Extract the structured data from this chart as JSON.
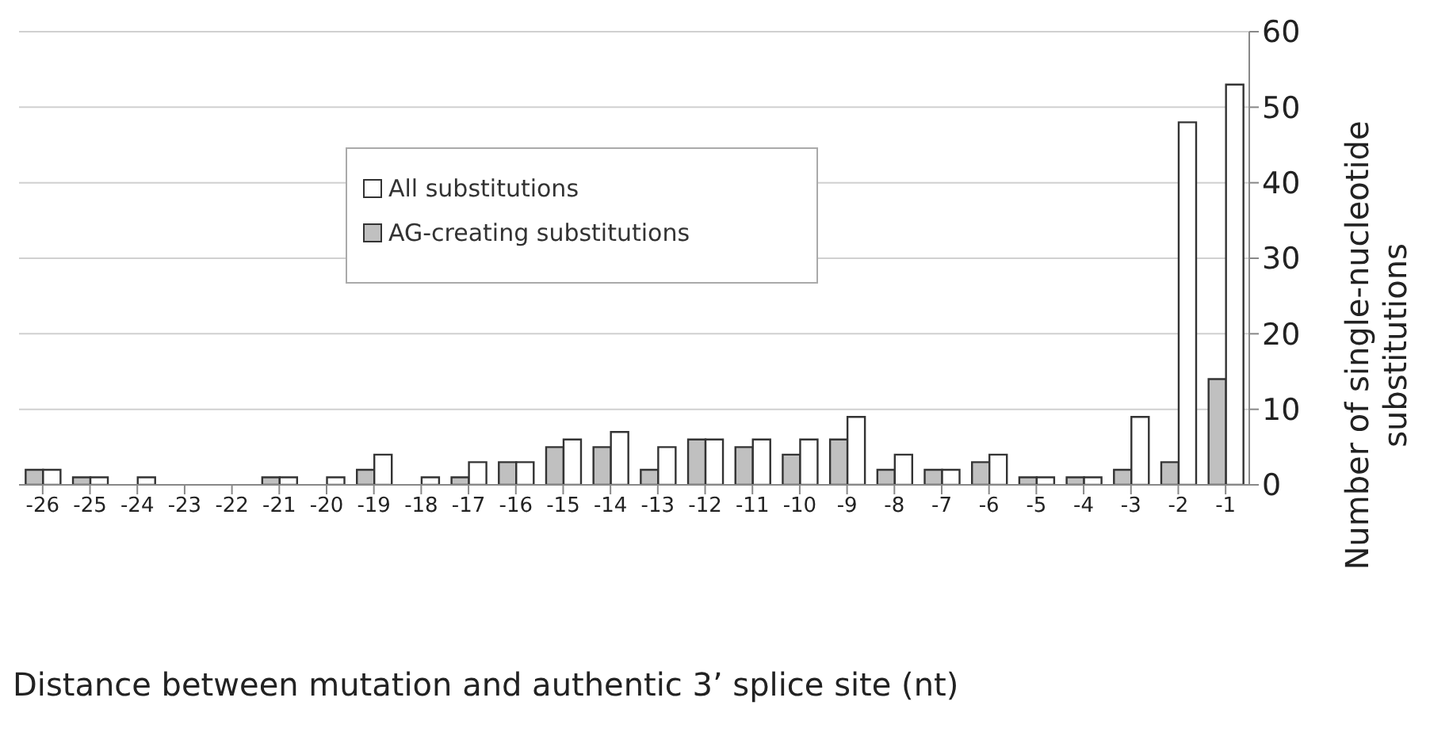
{
  "chart_data": {
    "type": "bar",
    "xlabel": "Distance between mutation and authentic 3’ splice site (nt)",
    "ylabel": "Number of single-nucleotide substitutions",
    "categories": [
      "-26",
      "-25",
      "-24",
      "-23",
      "-22",
      "-21",
      "-20",
      "-19",
      "-18",
      "-17",
      "-16",
      "-15",
      "-14",
      "-13",
      "-12",
      "-11",
      "-10",
      "-9",
      "-8",
      "-7",
      "-6",
      "-5",
      "-4",
      "-3",
      "-2",
      "-1"
    ],
    "series": [
      {
        "name": "AG-creating substitutions",
        "color": "#c0c0c0",
        "values": [
          2,
          1,
          0,
          0,
          0,
          1,
          0,
          2,
          0,
          1,
          3,
          5,
          5,
          2,
          6,
          5,
          4,
          6,
          2,
          2,
          3,
          1,
          1,
          2,
          3,
          14
        ]
      },
      {
        "name": "All substitutions",
        "color": "#ffffff",
        "values": [
          2,
          1,
          1,
          0,
          0,
          1,
          1,
          4,
          1,
          3,
          3,
          6,
          7,
          5,
          6,
          6,
          6,
          9,
          4,
          2,
          4,
          1,
          1,
          9,
          48,
          53
        ]
      }
    ],
    "ylim": [
      0,
      60
    ],
    "yticks": [
      0,
      10,
      20,
      30,
      40,
      50,
      60
    ],
    "grid": "y",
    "legend": "top"
  }
}
